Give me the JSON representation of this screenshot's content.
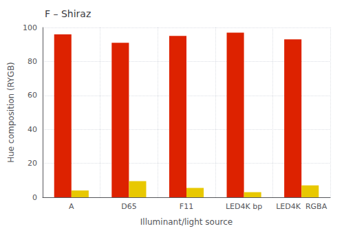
{
  "chart_data": {
    "type": "bar",
    "title": "F – Shiraz",
    "xlabel": "Illuminant/light source",
    "ylabel": "Hue composition (RYGB)",
    "categories": [
      "A",
      "D65",
      "F11",
      "LED4K bp",
      "LED4K  RGBA"
    ],
    "series": [
      {
        "color": "#dd2200",
        "values": [
          96,
          91,
          95,
          97,
          93
        ]
      },
      {
        "color": "#e8c800",
        "values": [
          4,
          9.5,
          5.5,
          3,
          7
        ]
      }
    ],
    "ylim": [
      0,
      100
    ],
    "yticks": [
      0,
      20,
      40,
      60,
      80,
      100
    ],
    "grid": true
  }
}
